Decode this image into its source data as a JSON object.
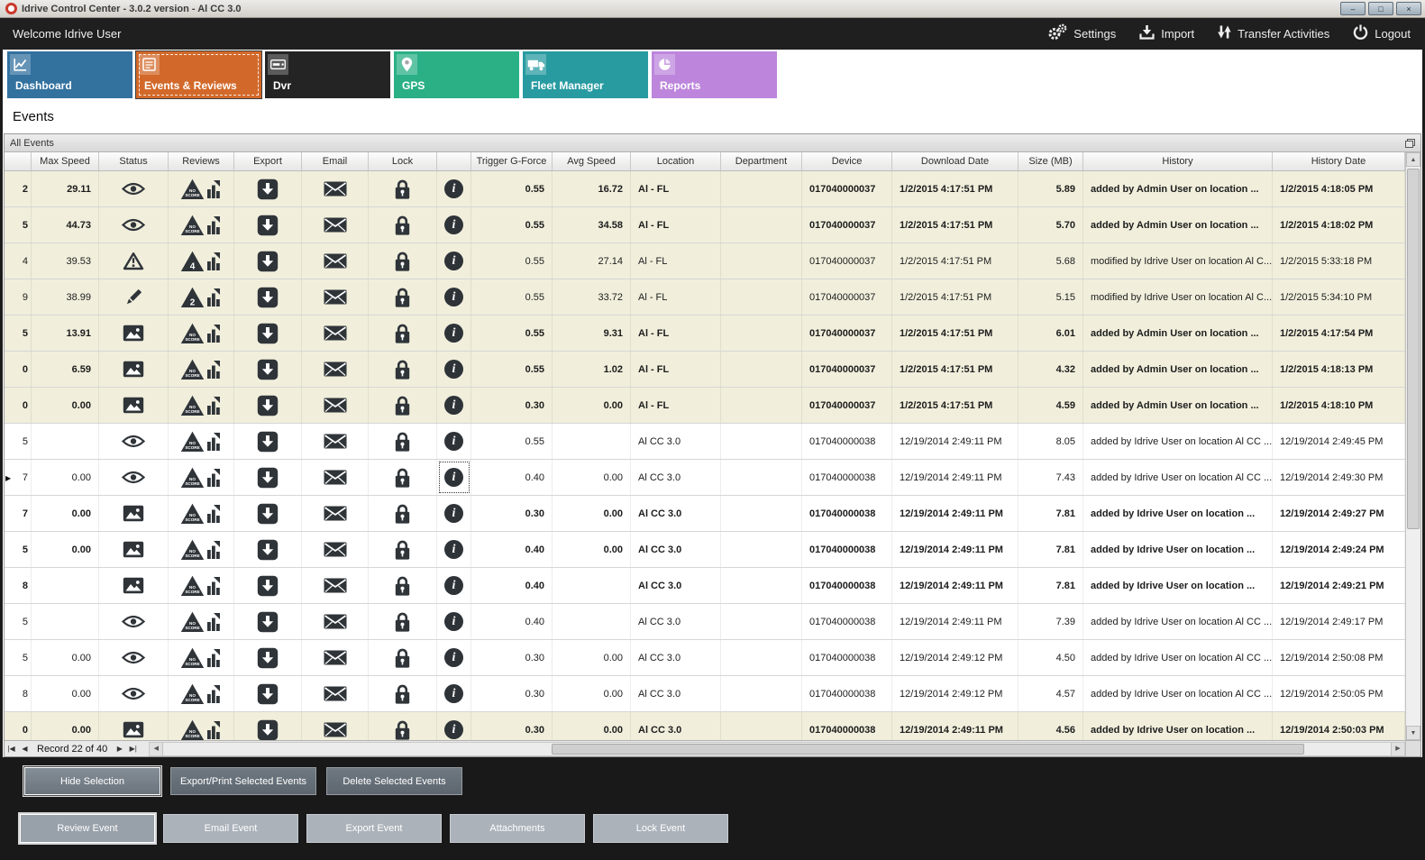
{
  "window": {
    "title": "Idrive Control Center - 3.0.2 version - Al CC 3.0",
    "controls": {
      "minimize": "–",
      "maximize": "□",
      "close": "×"
    }
  },
  "topbar": {
    "welcome": "Welcome Idrive User",
    "actions": [
      {
        "id": "settings",
        "label": "Settings",
        "icon": "gears-icon"
      },
      {
        "id": "import",
        "label": "Import",
        "icon": "import-icon"
      },
      {
        "id": "transfer-activities",
        "label": "Transfer Activities",
        "icon": "transfer-icon"
      },
      {
        "id": "logout",
        "label": "Logout",
        "icon": "power-icon"
      }
    ]
  },
  "tabs": [
    {
      "label": "Dashboard",
      "color": "#33719f",
      "icon": "chart-icon",
      "active": false
    },
    {
      "label": "Events & Reviews",
      "color": "#d2692a",
      "icon": "checklist-icon",
      "active": true
    },
    {
      "label": "Dvr",
      "color": "#242424",
      "icon": "dvr-icon",
      "active": false
    },
    {
      "label": "GPS",
      "color": "#2bb086",
      "icon": "pin-icon",
      "active": false
    },
    {
      "label": "Fleet Manager",
      "color": "#289ba1",
      "icon": "truck-icon",
      "active": false
    },
    {
      "label": "Reports",
      "color": "#bd86dc",
      "icon": "pie-icon",
      "active": false
    }
  ],
  "page_title": "Events",
  "panel": {
    "title": "All Events"
  },
  "grid": {
    "columns": [
      "",
      "Max Speed",
      "Status",
      "Reviews",
      "Export",
      "Email",
      "Lock",
      "",
      "Trigger G-Force",
      "Avg Speed",
      "Location",
      "Department",
      "Device",
      "Download Date",
      "Size (MB)",
      "History",
      "History Date"
    ],
    "rows": [
      {
        "edge": "2",
        "max_speed": "29.11",
        "status": "eye",
        "review": "NO SCORE",
        "trigger": "0.55",
        "avg_speed": "16.72",
        "location": "Al - FL",
        "department": "",
        "device": "017040000037",
        "download_date": "1/2/2015 4:17:51 PM",
        "size": "5.89",
        "history": "added by Admin User on location ...",
        "history_date": "1/2/2015 4:18:05 PM",
        "bold": true,
        "shaded": true,
        "focused": false
      },
      {
        "edge": "5",
        "max_speed": "44.73",
        "status": "eye",
        "review": "NO SCORE",
        "trigger": "0.55",
        "avg_speed": "34.58",
        "location": "Al - FL",
        "department": "",
        "device": "017040000037",
        "download_date": "1/2/2015 4:17:51 PM",
        "size": "5.70",
        "history": "added by Admin User on location ...",
        "history_date": "1/2/2015 4:18:02 PM",
        "bold": true,
        "shaded": true,
        "focused": false
      },
      {
        "edge": "4",
        "max_speed": "39.53",
        "status": "warning",
        "review": "4",
        "trigger": "0.55",
        "avg_speed": "27.14",
        "location": "Al - FL",
        "department": "",
        "device": "017040000037",
        "download_date": "1/2/2015 4:17:51 PM",
        "size": "5.68",
        "history": "modified by Idrive User on location Al C...",
        "history_date": "1/2/2015 5:33:18 PM",
        "bold": false,
        "shaded": true,
        "focused": false
      },
      {
        "edge": "9",
        "max_speed": "38.99",
        "status": "pencil",
        "review": "2",
        "trigger": "0.55",
        "avg_speed": "33.72",
        "location": "Al - FL",
        "department": "",
        "device": "017040000037",
        "download_date": "1/2/2015 4:17:51 PM",
        "size": "5.15",
        "history": "modified by Idrive User on location Al C...",
        "history_date": "1/2/2015 5:34:10 PM",
        "bold": false,
        "shaded": true,
        "focused": false
      },
      {
        "edge": "5",
        "max_speed": "13.91",
        "status": "image",
        "review": "NO SCORE",
        "trigger": "0.55",
        "avg_speed": "9.31",
        "location": "Al - FL",
        "department": "",
        "device": "017040000037",
        "download_date": "1/2/2015 4:17:51 PM",
        "size": "6.01",
        "history": "added by Admin User on location ...",
        "history_date": "1/2/2015 4:17:54 PM",
        "bold": true,
        "shaded": true,
        "focused": false
      },
      {
        "edge": "0",
        "max_speed": "6.59",
        "status": "image",
        "review": "NO SCORE",
        "trigger": "0.55",
        "avg_speed": "1.02",
        "location": "Al - FL",
        "department": "",
        "device": "017040000037",
        "download_date": "1/2/2015 4:17:51 PM",
        "size": "4.32",
        "history": "added by Admin User on location ...",
        "history_date": "1/2/2015 4:18:13 PM",
        "bold": true,
        "shaded": true,
        "focused": false
      },
      {
        "edge": "0",
        "max_speed": "0.00",
        "status": "image",
        "review": "NO SCORE",
        "trigger": "0.30",
        "avg_speed": "0.00",
        "location": "Al - FL",
        "department": "",
        "device": "017040000037",
        "download_date": "1/2/2015 4:17:51 PM",
        "size": "4.59",
        "history": "added by Admin User on location ...",
        "history_date": "1/2/2015 4:18:10 PM",
        "bold": true,
        "shaded": true,
        "focused": false
      },
      {
        "edge": "5",
        "max_speed": "",
        "status": "eye",
        "review": "NO SCORE",
        "trigger": "0.55",
        "avg_speed": "",
        "location": "Al CC 3.0",
        "department": "",
        "device": "017040000038",
        "download_date": "12/19/2014 2:49:11 PM",
        "size": "8.05",
        "history": "added by Idrive User on location Al CC ...",
        "history_date": "12/19/2014 2:49:45 PM",
        "bold": false,
        "shaded": false,
        "focused": false
      },
      {
        "edge": "7",
        "max_speed": "0.00",
        "status": "eye",
        "review": "NO SCORE",
        "trigger": "0.40",
        "avg_speed": "0.00",
        "location": "Al CC 3.0",
        "department": "",
        "device": "017040000038",
        "download_date": "12/19/2014 2:49:11 PM",
        "size": "7.43",
        "history": "added by Idrive User on location Al CC ...",
        "history_date": "12/19/2014 2:49:30 PM",
        "bold": false,
        "shaded": false,
        "focused": true
      },
      {
        "edge": "7",
        "max_speed": "0.00",
        "status": "image",
        "review": "NO SCORE",
        "trigger": "0.30",
        "avg_speed": "0.00",
        "location": "Al CC 3.0",
        "department": "",
        "device": "017040000038",
        "download_date": "12/19/2014 2:49:11 PM",
        "size": "7.81",
        "history": "added by Idrive User on location ...",
        "history_date": "12/19/2014 2:49:27 PM",
        "bold": true,
        "shaded": false,
        "focused": false
      },
      {
        "edge": "5",
        "max_speed": "0.00",
        "status": "image",
        "review": "NO SCORE",
        "trigger": "0.40",
        "avg_speed": "0.00",
        "location": "Al CC 3.0",
        "department": "",
        "device": "017040000038",
        "download_date": "12/19/2014 2:49:11 PM",
        "size": "7.81",
        "history": "added by Idrive User on location ...",
        "history_date": "12/19/2014 2:49:24 PM",
        "bold": true,
        "shaded": false,
        "focused": false
      },
      {
        "edge": "8",
        "max_speed": "",
        "status": "image",
        "review": "NO SCORE",
        "trigger": "0.40",
        "avg_speed": "",
        "location": "Al CC 3.0",
        "department": "",
        "device": "017040000038",
        "download_date": "12/19/2014 2:49:11 PM",
        "size": "7.81",
        "history": "added by Idrive User on location ...",
        "history_date": "12/19/2014 2:49:21 PM",
        "bold": true,
        "shaded": false,
        "focused": false
      },
      {
        "edge": "5",
        "max_speed": "",
        "status": "eye",
        "review": "NO SCORE",
        "trigger": "0.40",
        "avg_speed": "",
        "location": "Al CC 3.0",
        "department": "",
        "device": "017040000038",
        "download_date": "12/19/2014 2:49:11 PM",
        "size": "7.39",
        "history": "added by Idrive User on location Al CC ...",
        "history_date": "12/19/2014 2:49:17 PM",
        "bold": false,
        "shaded": false,
        "focused": false
      },
      {
        "edge": "5",
        "max_speed": "0.00",
        "status": "eye",
        "review": "NO SCORE",
        "trigger": "0.30",
        "avg_speed": "0.00",
        "location": "Al CC 3.0",
        "department": "",
        "device": "017040000038",
        "download_date": "12/19/2014 2:49:12 PM",
        "size": "4.50",
        "history": "added by Idrive User on location Al CC ...",
        "history_date": "12/19/2014 2:50:08 PM",
        "bold": false,
        "shaded": false,
        "focused": false
      },
      {
        "edge": "8",
        "max_speed": "0.00",
        "status": "eye",
        "review": "NO SCORE",
        "trigger": "0.30",
        "avg_speed": "0.00",
        "location": "Al CC 3.0",
        "department": "",
        "device": "017040000038",
        "download_date": "12/19/2014 2:49:12 PM",
        "size": "4.57",
        "history": "added by Idrive User on location Al CC ...",
        "history_date": "12/19/2014 2:50:05 PM",
        "bold": false,
        "shaded": false,
        "focused": false
      },
      {
        "edge": "0",
        "max_speed": "0.00",
        "status": "image",
        "review": "NO SCORE",
        "trigger": "0.30",
        "avg_speed": "0.00",
        "location": "Al CC 3.0",
        "department": "",
        "device": "017040000038",
        "download_date": "12/19/2014 2:49:11 PM",
        "size": "4.56",
        "history": "added by Idrive User on location ...",
        "history_date": "12/19/2014 2:50:03 PM",
        "bold": true,
        "shaded": true,
        "focused": false
      }
    ],
    "pager": {
      "first": "|◀",
      "prev": "◀",
      "record_text": "Record 22 of 40",
      "next": "▶",
      "last": "▶|"
    },
    "scrollbars": {
      "up": "▲",
      "down": "▼",
      "left": "◀",
      "right": "▶"
    }
  },
  "footer": {
    "row1": [
      "Hide Selection",
      "Export/Print Selected Events",
      "Delete Selected  Events"
    ],
    "row2": [
      "Review Event",
      "Email Event",
      "Export Event",
      "Attachments",
      "Lock Event"
    ]
  }
}
